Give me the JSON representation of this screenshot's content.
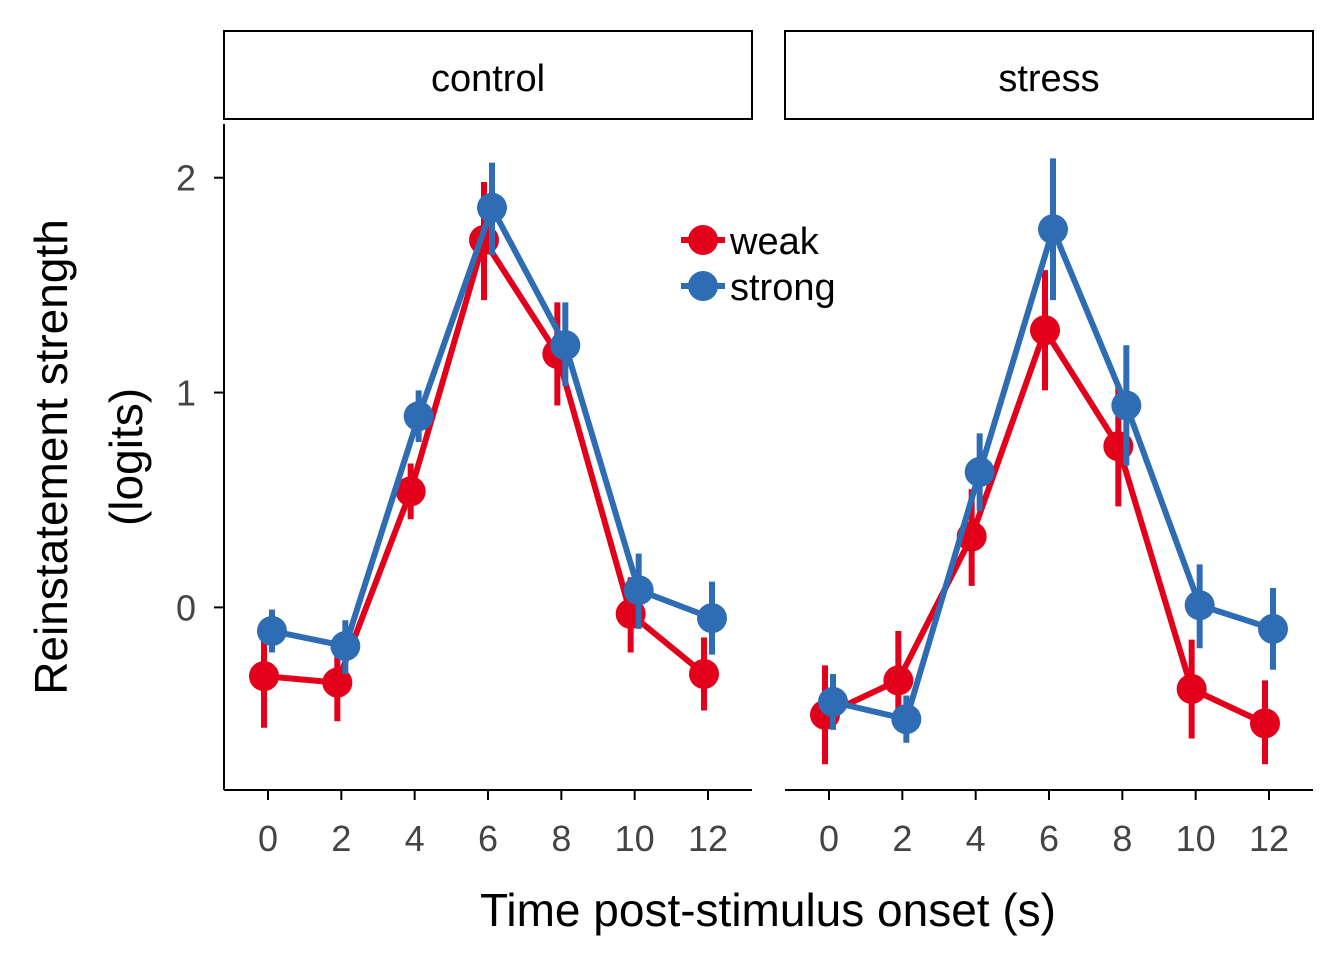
{
  "chart_data": {
    "type": "line",
    "xlabel": "Time post-stimulus onset (s)",
    "ylabel": "Reinstatement strength",
    "ylabel_line2": "(logits)",
    "x": [
      0,
      2,
      4,
      6,
      8,
      10,
      12
    ],
    "x_ticks": [
      "0",
      "2",
      "4",
      "6",
      "8",
      "10",
      "12"
    ],
    "y_ticks": [
      {
        "value": 0,
        "label": "0"
      },
      {
        "value": 1,
        "label": "1"
      },
      {
        "value": 2,
        "label": "2"
      }
    ],
    "ylim": [
      -0.85,
      2.25
    ],
    "xlim": [
      -1.2,
      13.2
    ],
    "grid": false,
    "legend": {
      "placement": "inside top-right of control panel",
      "entries": [
        {
          "name": "weak",
          "color": "#E3001B"
        },
        {
          "name": "strong",
          "color": "#2E6DB4"
        }
      ]
    },
    "facets": [
      {
        "label": "control",
        "series": [
          {
            "name": "weak",
            "color": "#E3001B",
            "values": [
              -0.32,
              -0.35,
              0.54,
              1.71,
              1.18,
              -0.03,
              -0.31
            ],
            "lower": [
              -0.56,
              -0.53,
              0.41,
              1.43,
              0.94,
              -0.21,
              -0.48
            ],
            "upper": [
              -0.07,
              -0.17,
              0.67,
              1.98,
              1.42,
              0.14,
              -0.14
            ]
          },
          {
            "name": "strong",
            "color": "#2E6DB4",
            "values": [
              -0.11,
              -0.18,
              0.89,
              1.86,
              1.22,
              0.08,
              -0.05
            ],
            "lower": [
              -0.21,
              -0.31,
              0.77,
              1.64,
              1.03,
              -0.1,
              -0.22
            ],
            "upper": [
              -0.01,
              -0.06,
              1.01,
              2.07,
              1.42,
              0.25,
              0.12
            ]
          }
        ]
      },
      {
        "label": "stress",
        "series": [
          {
            "name": "weak",
            "color": "#E3001B",
            "values": [
              -0.5,
              -0.34,
              0.33,
              1.29,
              0.75,
              -0.38,
              -0.54
            ],
            "lower": [
              -0.73,
              -0.55,
              0.1,
              1.01,
              0.47,
              -0.61,
              -0.73
            ],
            "upper": [
              -0.27,
              -0.11,
              0.55,
              1.57,
              1.03,
              -0.15,
              -0.34
            ]
          },
          {
            "name": "strong",
            "color": "#2E6DB4",
            "values": [
              -0.44,
              -0.52,
              0.63,
              1.76,
              0.94,
              0.01,
              -0.1
            ],
            "lower": [
              -0.57,
              -0.63,
              0.45,
              1.43,
              0.66,
              -0.19,
              -0.29
            ],
            "upper": [
              -0.31,
              -0.41,
              0.81,
              2.09,
              1.22,
              0.2,
              0.09
            ]
          }
        ]
      }
    ]
  }
}
